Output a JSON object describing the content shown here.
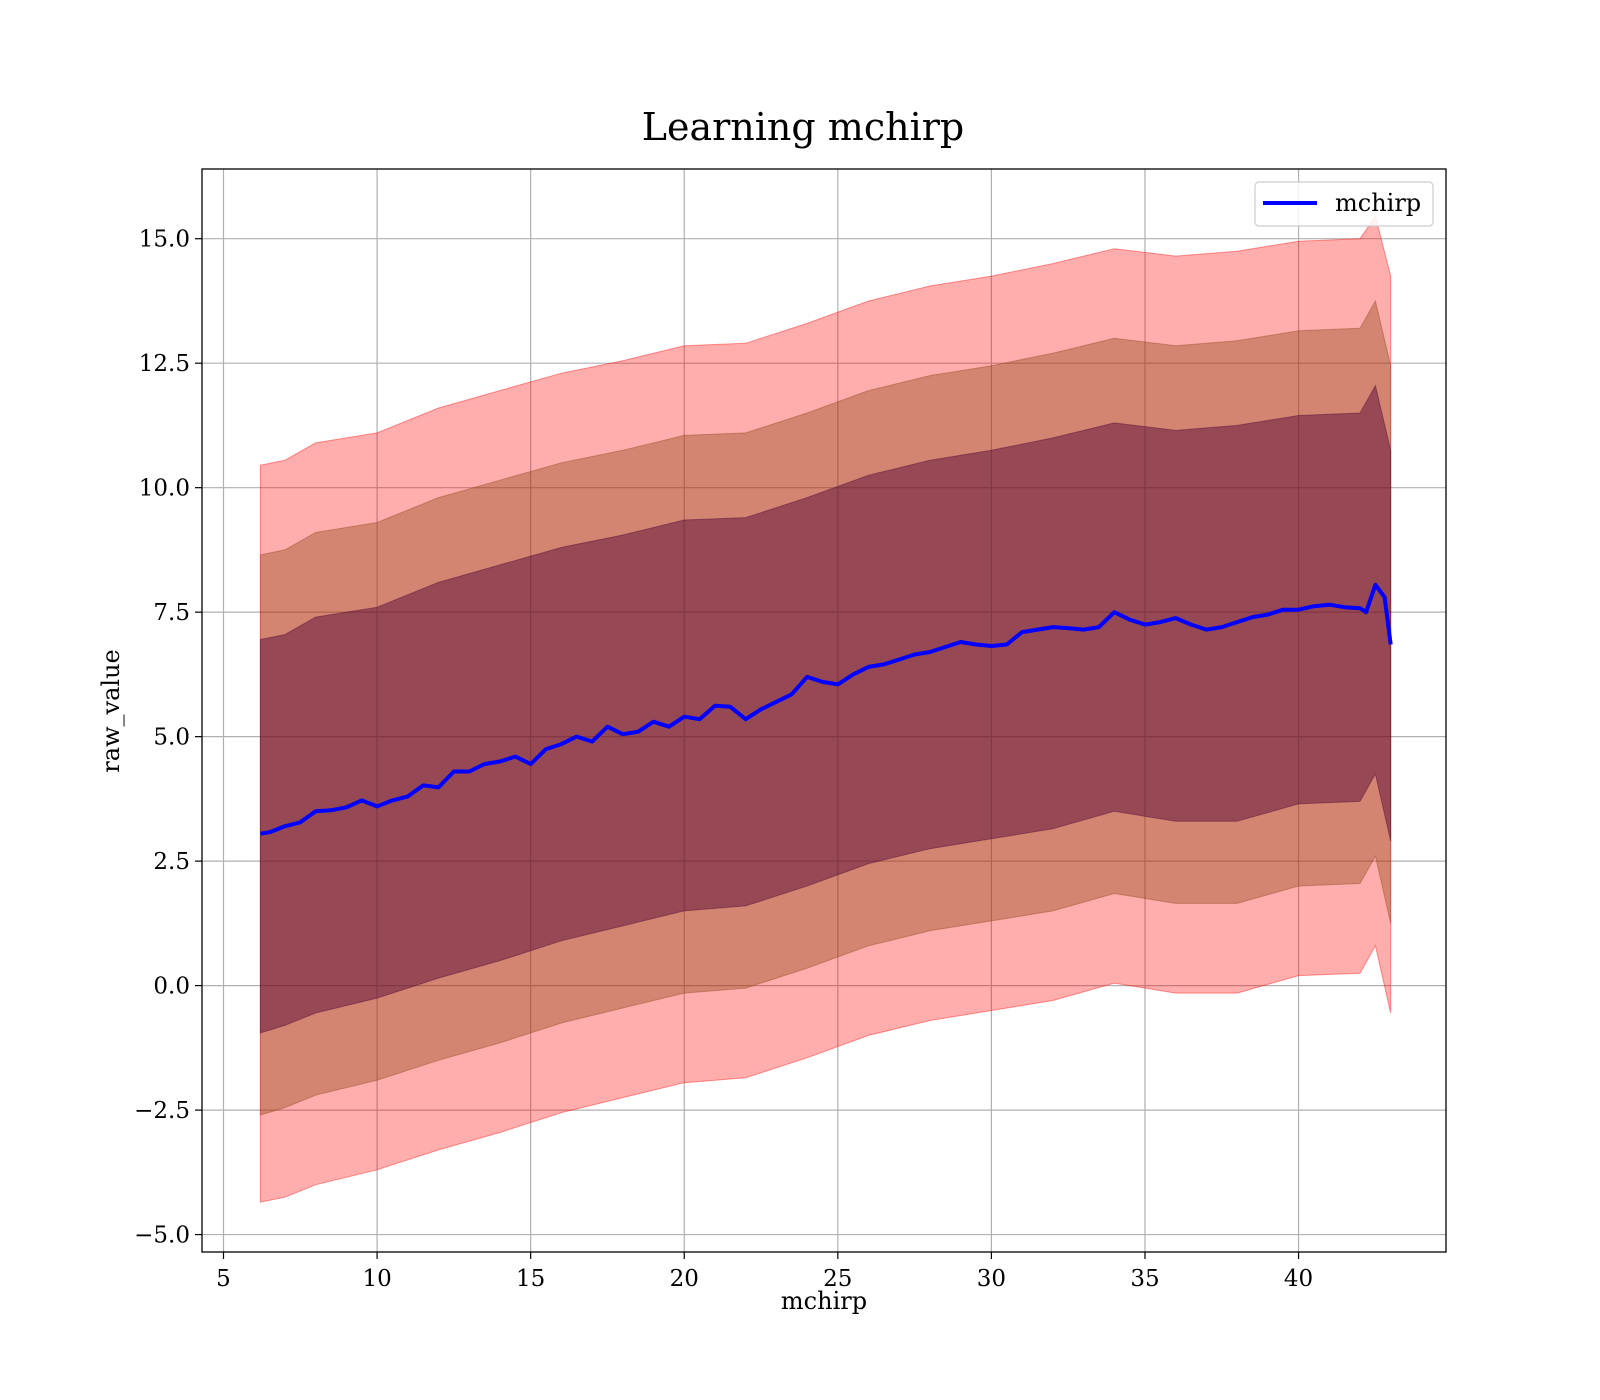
{
  "chart_data": {
    "type": "line",
    "title": "Learning mchirp",
    "xlabel": "mchirp",
    "ylabel": "raw_value",
    "xlim": [
      4.3,
      44.8
    ],
    "ylim": [
      -5.35,
      16.4
    ],
    "grid": true,
    "legend_position": "top-right",
    "x_ticks": [
      5,
      10,
      15,
      20,
      25,
      30,
      35,
      40
    ],
    "x_tick_labels": [
      "5",
      "10",
      "15",
      "20",
      "25",
      "30",
      "35",
      "40"
    ],
    "y_ticks": [
      -5.0,
      -2.5,
      0.0,
      2.5,
      5.0,
      7.5,
      10.0,
      12.5,
      15.0
    ],
    "y_tick_labels": [
      "−5.0",
      "−2.5",
      "0.0",
      "2.5",
      "5.0",
      "7.5",
      "10.0",
      "12.5",
      "15.0"
    ],
    "series": [
      {
        "name": "mchirp",
        "color": "#0000ff",
        "x": [
          6.2,
          6.5,
          7.0,
          7.5,
          8.0,
          8.5,
          9.0,
          9.5,
          10.0,
          10.5,
          11.0,
          11.5,
          12.0,
          12.5,
          13.0,
          13.5,
          14.0,
          14.5,
          15.0,
          15.5,
          16.0,
          16.5,
          17.0,
          17.5,
          18.0,
          18.5,
          19.0,
          19.5,
          20.0,
          20.5,
          21.0,
          21.5,
          22.0,
          22.5,
          23.0,
          23.5,
          24.0,
          24.5,
          25.0,
          25.5,
          26.0,
          26.5,
          27.0,
          27.5,
          28.0,
          28.5,
          29.0,
          29.5,
          30.0,
          30.5,
          31.0,
          31.5,
          32.0,
          32.5,
          33.0,
          33.5,
          34.0,
          34.5,
          35.0,
          35.5,
          36.0,
          36.5,
          37.0,
          37.5,
          38.0,
          38.5,
          39.0,
          39.5,
          40.0,
          40.5,
          41.0,
          41.5,
          42.0,
          42.2,
          42.5,
          42.8,
          43.0
        ],
        "values": [
          3.05,
          3.08,
          3.2,
          3.28,
          3.5,
          3.52,
          3.58,
          3.72,
          3.6,
          3.72,
          3.8,
          4.02,
          3.98,
          4.3,
          4.3,
          4.45,
          4.5,
          4.6,
          4.45,
          4.75,
          4.85,
          5.0,
          4.9,
          5.2,
          5.05,
          5.1,
          5.3,
          5.2,
          5.4,
          5.35,
          5.62,
          5.6,
          5.35,
          5.55,
          5.7,
          5.85,
          6.2,
          6.1,
          6.05,
          6.25,
          6.4,
          6.45,
          6.55,
          6.65,
          6.7,
          6.8,
          6.9,
          6.85,
          6.82,
          6.85,
          7.1,
          7.15,
          7.2,
          7.18,
          7.15,
          7.2,
          7.5,
          7.35,
          7.25,
          7.3,
          7.38,
          7.25,
          7.15,
          7.2,
          7.3,
          7.4,
          7.45,
          7.55,
          7.55,
          7.62,
          7.65,
          7.6,
          7.58,
          7.5,
          8.05,
          7.8,
          6.85
        ]
      }
    ],
    "bands": [
      {
        "color": "#ff0000",
        "opacity": 0.32,
        "x": [
          6.2,
          7.0,
          8.0,
          10.0,
          12.0,
          14.0,
          16.0,
          18.0,
          20.0,
          22.0,
          24.0,
          26.0,
          28.0,
          30.0,
          32.0,
          34.0,
          36.0,
          38.0,
          40.0,
          42.0,
          42.5,
          43.0
        ],
        "upper": [
          10.45,
          10.55,
          10.9,
          11.1,
          11.6,
          11.95,
          12.3,
          12.55,
          12.85,
          12.9,
          13.3,
          13.75,
          14.05,
          14.25,
          14.5,
          14.8,
          14.65,
          14.75,
          14.95,
          15.0,
          15.45,
          14.25
        ],
        "lower": [
          -4.35,
          -4.25,
          -4.0,
          -3.7,
          -3.3,
          -2.95,
          -2.55,
          -2.25,
          -1.95,
          -1.85,
          -1.45,
          -1.0,
          -0.7,
          -0.5,
          -0.3,
          0.05,
          -0.15,
          -0.15,
          0.2,
          0.25,
          0.8,
          -0.55
        ]
      },
      {
        "color": "#8b4513",
        "opacity": 0.38,
        "x": [
          6.2,
          7.0,
          8.0,
          10.0,
          12.0,
          14.0,
          16.0,
          18.0,
          20.0,
          22.0,
          24.0,
          26.0,
          28.0,
          30.0,
          32.0,
          34.0,
          36.0,
          38.0,
          40.0,
          42.0,
          42.5,
          43.0
        ],
        "upper": [
          8.65,
          8.75,
          9.1,
          9.3,
          9.8,
          10.15,
          10.5,
          10.75,
          11.05,
          11.1,
          11.5,
          11.95,
          12.25,
          12.45,
          12.7,
          13.0,
          12.85,
          12.95,
          13.15,
          13.2,
          13.75,
          12.45
        ],
        "lower": [
          -2.6,
          -2.45,
          -2.2,
          -1.9,
          -1.5,
          -1.15,
          -0.75,
          -0.45,
          -0.15,
          -0.05,
          0.35,
          0.8,
          1.1,
          1.3,
          1.5,
          1.85,
          1.65,
          1.65,
          2.0,
          2.05,
          2.6,
          1.25
        ]
      },
      {
        "color": "#4b0032",
        "opacity": 0.45,
        "x": [
          6.2,
          7.0,
          8.0,
          10.0,
          12.0,
          14.0,
          16.0,
          18.0,
          20.0,
          22.0,
          24.0,
          26.0,
          28.0,
          30.0,
          32.0,
          34.0,
          36.0,
          38.0,
          40.0,
          42.0,
          42.5,
          43.0
        ],
        "upper": [
          6.95,
          7.05,
          7.4,
          7.6,
          8.1,
          8.45,
          8.8,
          9.05,
          9.35,
          9.4,
          9.8,
          10.25,
          10.55,
          10.75,
          11.0,
          11.3,
          11.15,
          11.25,
          11.45,
          11.5,
          12.05,
          10.75
        ],
        "lower": [
          -0.95,
          -0.8,
          -0.55,
          -0.25,
          0.15,
          0.5,
          0.9,
          1.2,
          1.5,
          1.6,
          2.0,
          2.45,
          2.75,
          2.95,
          3.15,
          3.5,
          3.3,
          3.3,
          3.65,
          3.7,
          4.25,
          2.9
        ]
      }
    ]
  }
}
